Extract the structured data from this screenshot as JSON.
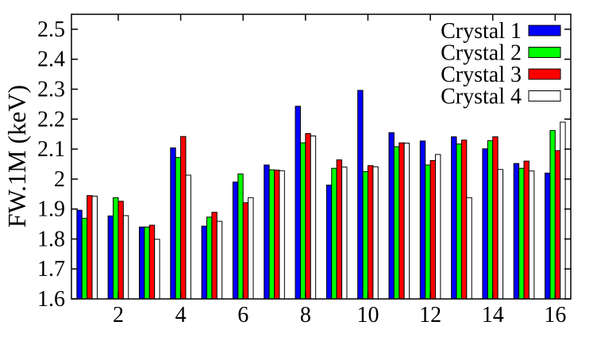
{
  "chart_data": {
    "type": "bar",
    "title": "",
    "xlabel": "",
    "ylabel": "FW.1M (keV)",
    "ylim": [
      1.6,
      2.55
    ],
    "xlim": [
      0.5,
      16.5
    ],
    "x_ticks": [
      2,
      4,
      6,
      8,
      10,
      12,
      14,
      16
    ],
    "y_ticks": [
      1.6,
      1.7,
      1.8,
      1.9,
      2.0,
      2.1,
      2.2,
      2.3,
      2.4,
      2.5
    ],
    "y_tick_labels": [
      "1.6",
      "1.7",
      "1.8",
      "1.9",
      "2",
      "2.1",
      "2.2",
      "2.3",
      "2.4",
      "2.5"
    ],
    "x_tick_labels": [
      "2",
      "4",
      "6",
      "8",
      "10",
      "12",
      "14",
      "16"
    ],
    "categories": [
      1,
      2,
      3,
      4,
      5,
      6,
      7,
      8,
      9,
      10,
      11,
      12,
      13,
      14,
      15,
      16
    ],
    "grid": false,
    "legend_position": "top-right",
    "series": [
      {
        "name": "Crystal 1",
        "color": "#0000ff",
        "values": [
          1.896,
          1.877,
          1.84,
          2.104,
          1.843,
          1.99,
          2.047,
          2.243,
          1.98,
          2.296,
          2.155,
          2.127,
          2.141,
          2.101,
          2.052,
          2.02
        ]
      },
      {
        "name": "Crystal 2",
        "color": "#00ff00",
        "values": [
          1.869,
          1.938,
          1.84,
          2.072,
          1.873,
          2.017,
          2.031,
          2.121,
          2.036,
          2.025,
          2.108,
          2.047,
          2.117,
          2.128,
          2.036,
          2.162
        ]
      },
      {
        "name": "Crystal 3",
        "color": "#ff0000",
        "values": [
          1.945,
          1.926,
          1.846,
          2.142,
          1.889,
          1.921,
          2.03,
          2.152,
          2.064,
          2.045,
          2.121,
          2.062,
          2.13,
          2.141,
          2.06,
          2.095
        ]
      },
      {
        "name": "Crystal 4",
        "color": "#ffffff",
        "values": [
          1.943,
          1.878,
          1.799,
          2.013,
          1.859,
          1.938,
          2.028,
          2.144,
          2.04,
          2.041,
          2.12,
          2.082,
          1.938,
          2.032,
          2.027,
          2.19
        ]
      }
    ]
  }
}
